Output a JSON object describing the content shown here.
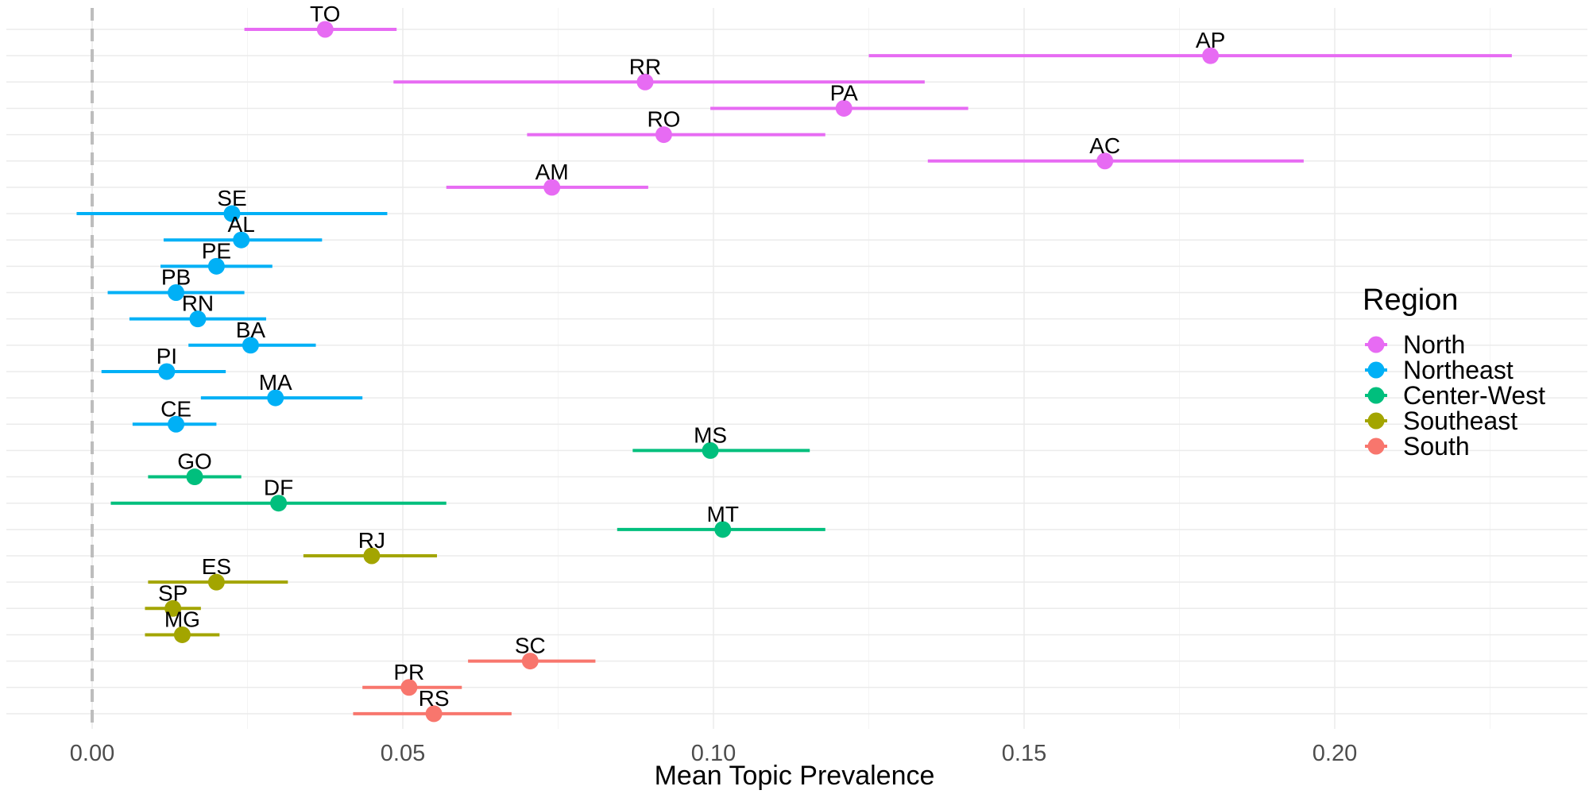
{
  "chart_data": {
    "type": "scatter",
    "subtype": "point-range (dot and whisker)",
    "title": "",
    "xlabel": "Mean Topic Prevalence",
    "ylabel": "",
    "xlim": [
      -0.014,
      0.2365
    ],
    "x_ticks": [
      0.0,
      0.05,
      0.1,
      0.15,
      0.2
    ],
    "x_tick_labels": [
      "0.00",
      "0.05",
      "0.10",
      "0.15",
      "0.20"
    ],
    "reference_line": {
      "x": 0.0,
      "style": "dashed",
      "color": "#bdbdbd"
    },
    "grid": true,
    "legend": {
      "title": "Region",
      "placement": "right",
      "entries": [
        {
          "name": "North",
          "color": "#E76BF3"
        },
        {
          "name": "Northeast",
          "color": "#00B0F6"
        },
        {
          "name": "Center-West",
          "color": "#00BF7D"
        },
        {
          "name": "Southeast",
          "color": "#A3A500"
        },
        {
          "name": "South",
          "color": "#F8766D"
        }
      ]
    },
    "points": [
      {
        "label": "TO",
        "region": "North",
        "mean": 0.0375,
        "lower": 0.0245,
        "upper": 0.049
      },
      {
        "label": "AP",
        "region": "North",
        "mean": 0.18,
        "lower": 0.125,
        "upper": 0.2285
      },
      {
        "label": "RR",
        "region": "North",
        "mean": 0.089,
        "lower": 0.0485,
        "upper": 0.134
      },
      {
        "label": "PA",
        "region": "North",
        "mean": 0.121,
        "lower": 0.0995,
        "upper": 0.141
      },
      {
        "label": "RO",
        "region": "North",
        "mean": 0.092,
        "lower": 0.07,
        "upper": 0.118
      },
      {
        "label": "AC",
        "region": "North",
        "mean": 0.163,
        "lower": 0.1345,
        "upper": 0.195
      },
      {
        "label": "AM",
        "region": "North",
        "mean": 0.074,
        "lower": 0.057,
        "upper": 0.0895
      },
      {
        "label": "SE",
        "region": "Northeast",
        "mean": 0.0225,
        "lower": -0.0025,
        "upper": 0.0475
      },
      {
        "label": "AL",
        "region": "Northeast",
        "mean": 0.024,
        "lower": 0.0115,
        "upper": 0.037
      },
      {
        "label": "PE",
        "region": "Northeast",
        "mean": 0.02,
        "lower": 0.011,
        "upper": 0.029
      },
      {
        "label": "PB",
        "region": "Northeast",
        "mean": 0.0135,
        "lower": 0.0025,
        "upper": 0.0245
      },
      {
        "label": "RN",
        "region": "Northeast",
        "mean": 0.017,
        "lower": 0.006,
        "upper": 0.028
      },
      {
        "label": "BA",
        "region": "Northeast",
        "mean": 0.0255,
        "lower": 0.0155,
        "upper": 0.036
      },
      {
        "label": "PI",
        "region": "Northeast",
        "mean": 0.012,
        "lower": 0.0015,
        "upper": 0.0215
      },
      {
        "label": "MA",
        "region": "Northeast",
        "mean": 0.0295,
        "lower": 0.0175,
        "upper": 0.0435
      },
      {
        "label": "CE",
        "region": "Northeast",
        "mean": 0.0135,
        "lower": 0.0065,
        "upper": 0.02
      },
      {
        "label": "MS",
        "region": "Center-West",
        "mean": 0.0995,
        "lower": 0.087,
        "upper": 0.1155
      },
      {
        "label": "GO",
        "region": "Center-West",
        "mean": 0.0165,
        "lower": 0.009,
        "upper": 0.024
      },
      {
        "label": "DF",
        "region": "Center-West",
        "mean": 0.03,
        "lower": 0.003,
        "upper": 0.057
      },
      {
        "label": "MT",
        "region": "Center-West",
        "mean": 0.1015,
        "lower": 0.0845,
        "upper": 0.118
      },
      {
        "label": "RJ",
        "region": "Southeast",
        "mean": 0.045,
        "lower": 0.034,
        "upper": 0.0555
      },
      {
        "label": "ES",
        "region": "Southeast",
        "mean": 0.02,
        "lower": 0.009,
        "upper": 0.0315
      },
      {
        "label": "SP",
        "region": "Southeast",
        "mean": 0.013,
        "lower": 0.0085,
        "upper": 0.0175
      },
      {
        "label": "MG",
        "region": "Southeast",
        "mean": 0.0145,
        "lower": 0.0085,
        "upper": 0.0205
      },
      {
        "label": "SC",
        "region": "South",
        "mean": 0.0705,
        "lower": 0.0605,
        "upper": 0.081
      },
      {
        "label": "PR",
        "region": "South",
        "mean": 0.051,
        "lower": 0.0435,
        "upper": 0.0595
      },
      {
        "label": "RS",
        "region": "South",
        "mean": 0.055,
        "lower": 0.042,
        "upper": 0.0675
      }
    ]
  }
}
